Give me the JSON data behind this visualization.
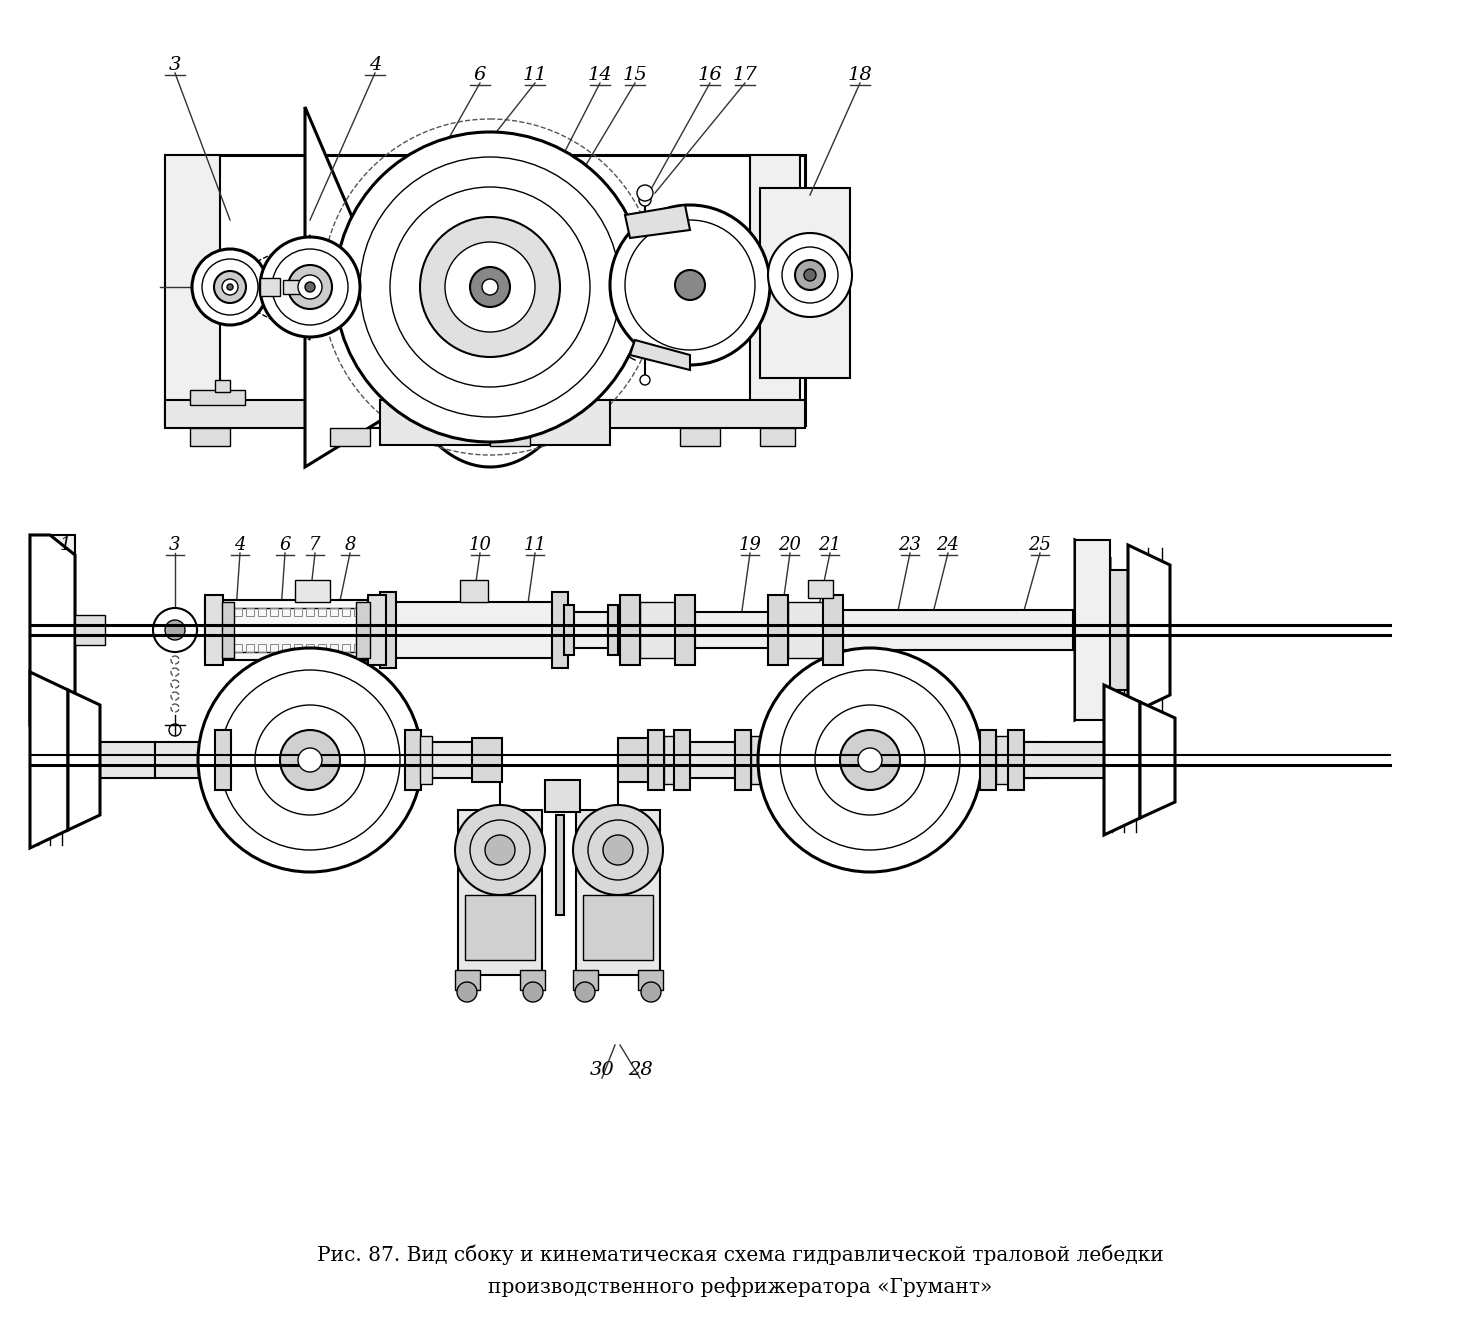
{
  "caption_line1": "Рис. 87. Вид сбоку и кинематическая схема гидравлической траловой лебедки",
  "caption_line2": "производственного рефрижератора «Грумант»",
  "bg_color": "#ffffff",
  "line_color": "#000000",
  "figsize": [
    14.8,
    13.27
  ],
  "dpi": 100
}
